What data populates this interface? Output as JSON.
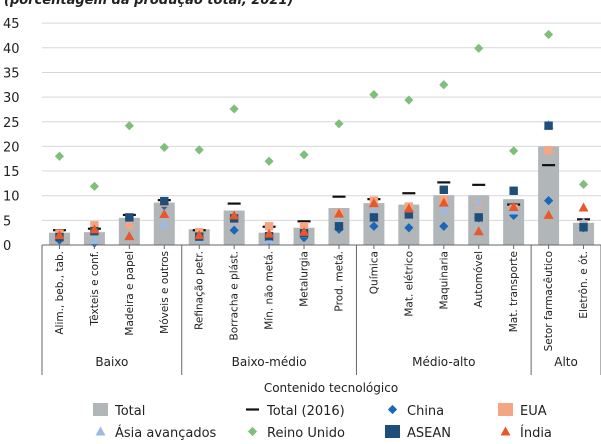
{
  "chart_data": {
    "type": "bar",
    "title_fragment": "(porcentagem da produção total, 2021)",
    "xlabel": "Contenido tecnológico",
    "ylim": [
      0,
      45
    ],
    "yticks": [
      0,
      5,
      10,
      15,
      20,
      25,
      30,
      35,
      40,
      45
    ],
    "categories": [
      "Alim., beb., tab.",
      "Têxteis e conf.",
      "Madeira e papel",
      "Móveis e outros",
      "Refinação petr.",
      "Borracha e plást.",
      "Mín. não metá.",
      "Metalurgia",
      "Prod. metá.",
      "Química",
      "Mat. elétrico",
      "Maquinaria",
      "Automóvel",
      "Mat. transporte",
      "Setor farmacêutico",
      "Eletrôn. e ót."
    ],
    "groups": [
      {
        "label": "Baixo",
        "start": 0,
        "end": 3
      },
      {
        "label": "Baixo-médio",
        "start": 4,
        "end": 8
      },
      {
        "label": "Médio-alto",
        "start": 9,
        "end": 13
      },
      {
        "label": "Alto",
        "start": 14,
        "end": 15
      }
    ],
    "series": [
      {
        "name": "Total",
        "kind": "bar",
        "color": "#b1b6b8",
        "values": [
          2.5,
          2.6,
          5.5,
          8.6,
          3.2,
          7.0,
          2.5,
          3.5,
          7.5,
          8.5,
          8.2,
          10.1,
          10.1,
          9.3,
          20.0,
          4.5
        ]
      },
      {
        "name": "Total (2016)",
        "kind": "dash",
        "color": "#111111",
        "values": [
          3.0,
          3.3,
          6.1,
          9.1,
          3.0,
          8.4,
          3.7,
          4.8,
          9.8,
          9.3,
          10.5,
          12.7,
          12.2,
          8.2,
          16.2,
          5.2
        ]
      },
      {
        "name": "China",
        "kind": "diamond",
        "color": "#1a66b8",
        "values": [
          1.0,
          0.4,
          4.3,
          8.0,
          1.6,
          3.0,
          1.0,
          1.5,
          3.2,
          3.8,
          3.5,
          3.8,
          5.5,
          6.0,
          9.0,
          3.5
        ]
      },
      {
        "name": "EUA",
        "kind": "square",
        "color": "#f4a582",
        "values": [
          2.3,
          4.0,
          4.1,
          8.6,
          2.6,
          5.4,
          3.8,
          3.8,
          6.4,
          9.0,
          7.8,
          9.2,
          8.2,
          7.4,
          19.2,
          4.2
        ]
      },
      {
        "name": "Ásia avançados",
        "kind": "triangle",
        "color": "#9cbbe3",
        "values": [
          1.6,
          1.0,
          5.4,
          4.2,
          1.4,
          5.6,
          1.1,
          2.3,
          4.6,
          6.6,
          6.1,
          7.2,
          8.6,
          7.0,
          24.4,
          4.6
        ]
      },
      {
        "name": "Reino Unido",
        "kind": "diamond",
        "color": "#7fbf7b",
        "values": [
          18.0,
          11.9,
          24.2,
          19.8,
          19.3,
          27.6,
          17.0,
          18.3,
          24.6,
          30.5,
          29.4,
          32.5,
          39.9,
          19.1,
          42.7,
          12.3
        ]
      },
      {
        "name": "ASEAN",
        "kind": "square",
        "color": "#1f4e79",
        "values": [
          1.6,
          2.8,
          5.6,
          8.9,
          1.7,
          5.4,
          1.8,
          2.4,
          3.8,
          5.6,
          6.2,
          11.2,
          5.6,
          11.0,
          24.2,
          3.6
        ]
      },
      {
        "name": "Índia",
        "kind": "triangle",
        "color": "#e8582a",
        "values": [
          2.0,
          3.2,
          1.8,
          6.3,
          2.0,
          6.0,
          2.3,
          2.7,
          6.4,
          8.5,
          7.4,
          8.6,
          2.8,
          7.7,
          6.1,
          7.6
        ]
      }
    ],
    "legend": {
      "placement": "bottom",
      "columns": 4
    }
  }
}
